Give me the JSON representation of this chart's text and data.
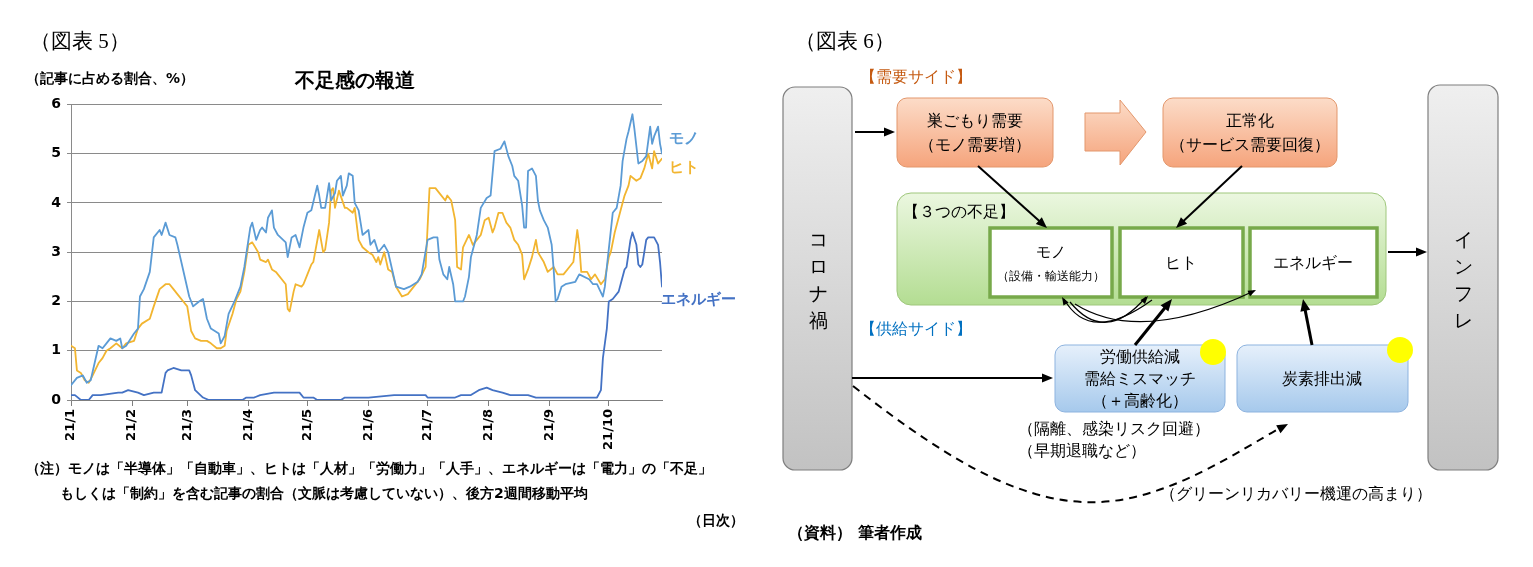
{
  "chart_data": [
    {
      "type": "line",
      "title": "不足感の報道",
      "ylabel": "（記事に占める割合、%）",
      "xlabel": "（日次）",
      "annotations": [
        "（図表 5）",
        "（注）モノは「半導体」「自動車」、ヒトは「人材」「労働力」「人手」、エネルギーは「電力」の「不足」",
        "もしくは「制約」を含む記事の割合（文脈は考慮していない）、後方2週間移動平均"
      ],
      "xlim": [
        "--01-01",
        "--10-28"
      ],
      "xticks": [
        {
          "value": "--01-01",
          "label": "21/1"
        },
        {
          "value": "--02-01",
          "label": "21/2"
        },
        {
          "value": "--03-01",
          "label": "21/3"
        },
        {
          "value": "--04-01",
          "label": "21/4"
        },
        {
          "value": "--05-01",
          "label": "21/5"
        },
        {
          "value": "--06-01",
          "label": "21/6"
        },
        {
          "value": "--07-01",
          "label": "21/7"
        },
        {
          "value": "--08-01",
          "label": "21/8"
        },
        {
          "value": "--09-01",
          "label": "21/9"
        },
        {
          "value": "--10-01",
          "label": "21/10"
        }
      ],
      "ylim": [
        0,
        6
      ],
      "yticks": [
        0,
        1,
        2,
        3,
        4,
        5,
        6
      ],
      "grid": "y",
      "marker": "none",
      "series": [
        {
          "name": "モノ",
          "color": "#5b9bd5",
          "x": [
            "--01-01",
            "--01-04",
            "--01-07",
            "--01-09",
            "--01-11",
            "--01-13",
            "--01-15",
            "--01-17",
            "--01-19",
            "--01-21",
            "--01-24",
            "--01-26",
            "--01-27",
            "--01-29",
            "--02-02",
            "--02-04",
            "--02-05",
            "--02-07",
            "--02-10",
            "--02-12",
            "--02-15",
            "--02-16",
            "--02-18",
            "--02-20",
            "--02-23",
            "--02-24",
            "--02-26",
            "--02-28",
            "--03-02",
            "--03-04",
            "--03-07",
            "--03-09",
            "--03-11",
            "--03-13",
            "--03-17",
            "--03-18",
            "--03-20",
            "--03-22",
            "--03-25",
            "--03-28",
            "--03-30",
            "--04-02",
            "--04-03",
            "--04-05",
            "--04-07",
            "--04-08",
            "--04-10",
            "--04-11",
            "--04-13",
            "--04-14",
            "--04-16",
            "--04-20",
            "--04-21",
            "--04-23",
            "--04-25",
            "--04-27",
            "--04-29",
            "--05-01",
            "--05-03",
            "--05-06",
            "--05-07",
            "--05-08",
            "--05-10",
            "--05-12",
            "--05-13",
            "--05-15",
            "--05-16",
            "--05-18",
            "--05-19",
            "--05-21",
            "--05-22",
            "--05-24",
            "--05-25",
            "--05-27",
            "--05-29",
            "--06-01",
            "--06-02",
            "--06-04",
            "--06-06",
            "--06-09",
            "--06-11",
            "--06-13",
            "--06-15",
            "--06-19",
            "--06-22",
            "--06-26",
            "--06-28",
            "--07-01",
            "--07-04",
            "--07-06",
            "--07-07",
            "--07-09",
            "--07-11",
            "--07-12",
            "--07-14",
            "--07-15",
            "--07-19",
            "--07-20",
            "--07-22",
            "--07-23",
            "--07-26",
            "--07-28",
            "--07-31",
            "--08-02",
            "--08-04",
            "--08-07",
            "--08-09",
            "--08-11",
            "--08-13",
            "--08-14",
            "--08-16",
            "--08-18",
            "--08-19",
            "--08-20",
            "--08-21",
            "--08-23",
            "--08-25",
            "--08-26",
            "--08-27",
            "--08-29",
            "--08-31",
            "--09-02",
            "--09-03",
            "--09-04",
            "--09-05",
            "--09-07",
            "--09-09",
            "--09-14",
            "--09-16",
            "--09-21",
            "--09-23",
            "--09-25",
            "--09-28",
            "--09-29",
            "--09-30",
            "--10-03",
            "--10-05",
            "--10-07",
            "--10-08",
            "--10-10",
            "--10-11",
            "--10-13",
            "--10-14",
            "--10-16",
            "--10-18",
            "--10-20",
            "--10-22",
            "--10-23",
            "--10-24",
            "--10-26",
            "--10-27",
            "--10-28"
          ],
          "values": [
            0.3,
            0.45,
            0.5,
            0.35,
            0.4,
            0.75,
            1.1,
            1.05,
            1.15,
            1.25,
            1.2,
            1.25,
            1.05,
            1.1,
            1.35,
            1.45,
            2.1,
            2.25,
            2.6,
            3.3,
            3.45,
            3.35,
            3.6,
            3.35,
            3.3,
            3.15,
            2.8,
            2.45,
            2.1,
            1.9,
            2.0,
            2.05,
            1.65,
            1.45,
            1.35,
            1.15,
            1.3,
            1.75,
            2.0,
            2.3,
            2.7,
            3.5,
            3.6,
            3.25,
            3.45,
            3.5,
            3.4,
            3.7,
            3.85,
            3.5,
            3.35,
            3.2,
            2.9,
            3.3,
            3.35,
            3.1,
            3.5,
            3.8,
            3.85,
            4.35,
            4.15,
            3.9,
            3.9,
            4.4,
            4.05,
            4.2,
            4.45,
            4.55,
            4.15,
            4.35,
            4.6,
            4.55,
            4.0,
            3.85,
            3.35,
            3.45,
            3.15,
            3.25,
            3.0,
            3.15,
            3.0,
            2.65,
            2.3,
            2.25,
            2.3,
            2.4,
            2.55,
            3.25,
            3.3,
            3.3,
            2.85,
            2.55,
            2.45,
            2.7,
            2.35,
            2.0,
            2.0,
            2.1,
            2.5,
            2.9,
            3.35,
            3.9,
            4.1,
            4.15,
            5.05,
            5.1,
            5.25,
            4.95,
            4.75,
            4.55,
            4.45,
            3.95,
            3.5,
            3.5,
            4.65,
            4.7,
            4.55,
            4.05,
            3.85,
            3.65,
            3.5,
            3.15,
            2.65,
            2.0,
            2.05,
            2.3,
            2.35,
            2.4,
            2.55,
            2.45,
            2.35,
            2.35,
            2.1,
            2.3,
            2.7,
            3.8,
            3.9,
            4.35,
            4.85,
            5.3,
            5.45,
            5.8,
            5.5,
            4.8,
            4.85,
            4.95,
            5.55,
            5.2,
            5.35,
            5.55,
            5.2,
            5.0
          ]
        },
        {
          "name": "ヒト",
          "color": "#f2b530",
          "x": [
            "--01-01",
            "--01-03",
            "--01-04",
            "--01-06",
            "--01-08",
            "--01-10",
            "--01-12",
            "--01-15",
            "--01-17",
            "--01-19",
            "--01-21",
            "--01-24",
            "--01-27",
            "--01-29",
            "--02-02",
            "--02-04",
            "--02-06",
            "--02-10",
            "--02-12",
            "--02-15",
            "--02-18",
            "--02-20",
            "--02-22",
            "--02-24",
            "--02-27",
            "--03-01",
            "--03-03",
            "--03-05",
            "--03-08",
            "--03-11",
            "--03-13",
            "--03-16",
            "--03-18",
            "--03-20",
            "--03-21",
            "--03-24",
            "--03-26",
            "--03-28",
            "--03-30",
            "--04-01",
            "--04-03",
            "--04-06",
            "--04-07",
            "--04-10",
            "--04-11",
            "--04-13",
            "--04-15",
            "--04-20",
            "--04-21",
            "--04-22",
            "--04-24",
            "--04-25",
            "--04-28",
            "--04-29",
            "--05-01",
            "--05-03",
            "--05-04",
            "--05-07",
            "--05-09",
            "--05-10",
            "--05-12",
            "--05-13",
            "--05-14",
            "--05-15",
            "--05-17",
            "--05-20",
            "--05-21",
            "--05-24",
            "--05-25",
            "--05-27",
            "--05-29",
            "--06-01",
            "--06-03",
            "--06-05",
            "--06-06",
            "--06-07",
            "--06-09",
            "--06-11",
            "--06-13",
            "--06-15",
            "--06-18",
            "--06-21",
            "--06-24",
            "--06-27",
            "--06-30",
            "--07-01",
            "--07-02",
            "--07-05",
            "--07-07",
            "--07-10",
            "--07-11",
            "--07-13",
            "--07-15",
            "--07-16",
            "--07-18",
            "--07-19",
            "--07-22",
            "--07-24",
            "--07-26",
            "--07-28",
            "--07-30",
            "--08-01",
            "--08-03",
            "--08-04",
            "--08-06",
            "--08-08",
            "--08-10",
            "--08-12",
            "--08-14",
            "--08-16",
            "--08-18",
            "--08-19",
            "--08-21",
            "--08-23",
            "--08-25",
            "--08-26",
            "--08-29",
            "--08-31",
            "--09-03",
            "--09-05",
            "--09-08",
            "--09-11",
            "--09-13",
            "--09-15",
            "--09-16",
            "--09-17",
            "--09-20",
            "--09-22",
            "--09-24",
            "--09-27",
            "--09-29",
            "--10-01",
            "--10-02",
            "--10-04",
            "--10-07",
            "--10-09",
            "--10-11",
            "--10-12",
            "--10-15",
            "--10-17",
            "--10-19",
            "--10-21",
            "--10-23",
            "--10-24",
            "--10-26",
            "--10-28"
          ],
          "values": [
            1.1,
            1.05,
            0.6,
            0.55,
            0.4,
            0.35,
            0.5,
            0.75,
            0.85,
            1.0,
            1.05,
            1.15,
            1.05,
            1.15,
            1.2,
            1.45,
            1.55,
            1.65,
            1.9,
            2.25,
            2.35,
            2.35,
            2.25,
            2.15,
            2.0,
            1.9,
            1.4,
            1.25,
            1.2,
            1.2,
            1.15,
            1.05,
            1.05,
            1.1,
            1.4,
            1.75,
            2.05,
            2.2,
            2.6,
            3.15,
            3.2,
            3.0,
            2.85,
            2.8,
            2.85,
            2.65,
            2.6,
            2.35,
            1.85,
            1.8,
            2.2,
            2.35,
            2.3,
            2.35,
            2.55,
            2.75,
            2.8,
            3.45,
            3.0,
            3.05,
            3.6,
            4.25,
            4.3,
            3.9,
            4.25,
            3.9,
            3.9,
            3.8,
            3.9,
            3.25,
            3.1,
            3.0,
            2.95,
            2.8,
            2.9,
            2.75,
            3.0,
            2.65,
            2.6,
            2.3,
            2.1,
            2.15,
            2.3,
            2.45,
            2.7,
            3.5,
            4.3,
            4.3,
            4.2,
            4.05,
            4.15,
            4.05,
            3.65,
            2.7,
            2.65,
            3.1,
            3.35,
            3.15,
            3.25,
            3.35,
            3.65,
            3.7,
            3.4,
            3.5,
            3.8,
            3.8,
            3.6,
            3.5,
            3.25,
            3.15,
            2.95,
            2.45,
            2.65,
            2.9,
            3.25,
            3.0,
            2.8,
            2.6,
            2.7,
            2.55,
            2.55,
            2.7,
            2.8,
            3.45,
            3.15,
            2.6,
            2.6,
            2.45,
            2.55,
            2.35,
            2.45,
            2.9,
            3.0,
            3.4,
            3.85,
            4.15,
            4.35,
            4.55,
            4.45,
            4.5,
            4.7,
            5.0,
            4.7,
            5.05,
            4.8,
            4.9
          ]
        },
        {
          "name": "エネルギー",
          "color": "#4472c4",
          "x": [
            "--01-01",
            "--01-03",
            "--01-06",
            "--01-10",
            "--01-12",
            "--01-16",
            "--01-25",
            "--01-27",
            "--01-30",
            "--02-04",
            "--02-07",
            "--02-12",
            "--02-16",
            "--02-18",
            "--02-19",
            "--02-22",
            "--02-26",
            "--03-02",
            "--03-03",
            "--03-05",
            "--03-09",
            "--03-12",
            "--03-29",
            "--03-31",
            "--04-04",
            "--04-07",
            "--04-14",
            "--04-27",
            "--04-29",
            "--05-04",
            "--05-06",
            "--05-18",
            "--05-20",
            "--06-01",
            "--06-14",
            "--06-30",
            "--07-01",
            "--07-15",
            "--07-18",
            "--07-23",
            "--07-27",
            "--07-31",
            "--08-03",
            "--08-08",
            "--08-12",
            "--08-21",
            "--08-25",
            "--09-07",
            "--09-13",
            "--09-25",
            "--09-27",
            "--09-28",
            "--09-30",
            "--10-01",
            "--10-03",
            "--10-06",
            "--10-07",
            "--10-09",
            "--10-10",
            "--10-12",
            "--10-13",
            "--10-15",
            "--10-16",
            "--10-17",
            "--10-18",
            "--10-20",
            "--10-21",
            "--10-24",
            "--10-26",
            "--10-27",
            "--10-28"
          ],
          "values": [
            0.1,
            0.1,
            0.0,
            0.0,
            0.1,
            0.1,
            0.15,
            0.15,
            0.2,
            0.15,
            0.1,
            0.15,
            0.15,
            0.55,
            0.6,
            0.65,
            0.6,
            0.6,
            0.5,
            0.2,
            0.05,
            0.0,
            0.0,
            0.05,
            0.05,
            0.1,
            0.15,
            0.15,
            0.05,
            0.05,
            0.0,
            0.0,
            0.05,
            0.05,
            0.1,
            0.1,
            0.05,
            0.05,
            0.1,
            0.1,
            0.2,
            0.25,
            0.2,
            0.15,
            0.1,
            0.1,
            0.05,
            0.05,
            0.05,
            0.05,
            0.2,
            0.85,
            1.45,
            2.0,
            2.05,
            2.2,
            2.35,
            2.65,
            2.7,
            3.25,
            3.4,
            3.15,
            2.75,
            2.7,
            2.75,
            3.25,
            3.3,
            3.3,
            3.15,
            2.8,
            2.3
          ]
        }
      ]
    },
    {
      "type": "other",
      "title": "（図表 6）",
      "annotations": [
        "【需要サイド】",
        "巣ごもり需要",
        "（モノ需要増）",
        "正常化",
        "（サービス需要回復）",
        "【３つの不足】",
        "モノ",
        "（設備・輸送能力）",
        "ヒト",
        "エネルギー",
        "コロナ禍",
        "インフレ",
        "【供給サイド】",
        "労働供給減",
        "需給ミスマッチ",
        "（＋高齢化）",
        "炭素排出減",
        "（隔離、感染リスク回避）",
        "（早期退職など）",
        "（グリーンリカバリー機運の高まり）",
        "（資料） 筆者作成"
      ]
    }
  ]
}
